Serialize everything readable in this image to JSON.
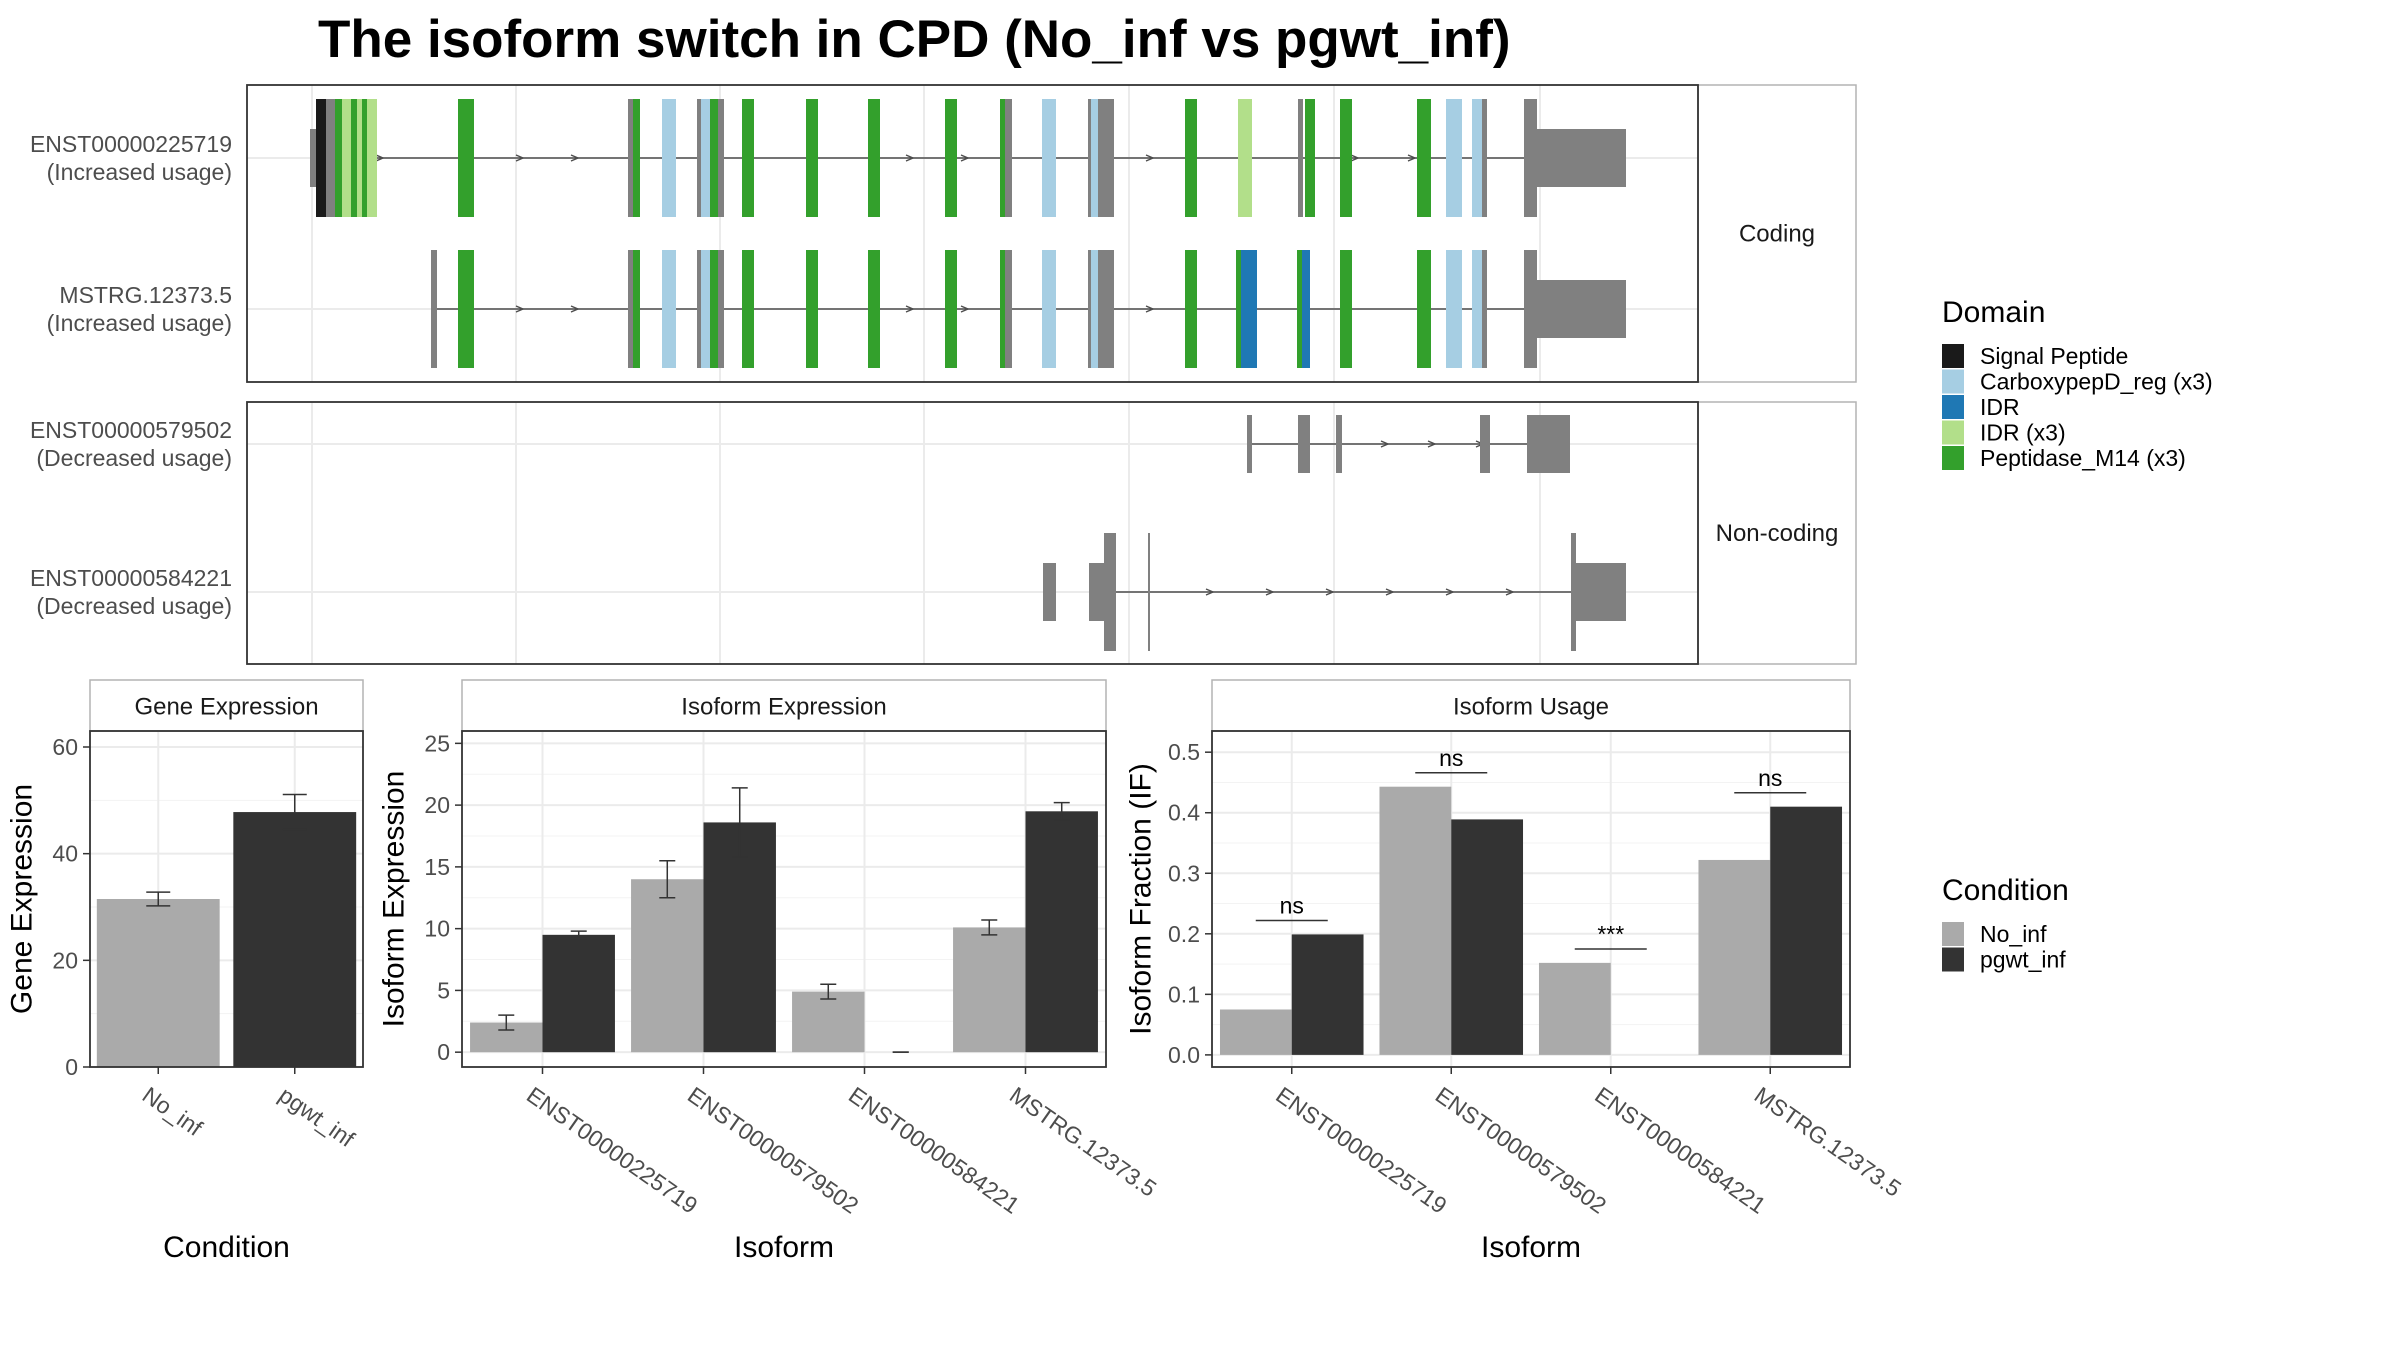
{
  "title": "The isoform switch in CPD (No_inf vs pgwt_inf)",
  "colors": {
    "no_inf": "#aaaaaa",
    "pgwt_inf": "#333333",
    "exon": "#808080",
    "Signal Peptide": "#1a1a1a",
    "CarboxypepD_reg (x3)": "#a6cee3",
    "IDR": "#1f78b4",
    "IDR (x3)": "#b2df8a",
    "Peptidase_M14 (x3)": "#33a02c"
  },
  "structure": {
    "facets": [
      "Coding",
      "Non-coding"
    ],
    "transcripts": [
      {
        "id": "ENST00000225719",
        "usage": "(Increased usage)",
        "facet": "Coding"
      },
      {
        "id": "MSTRG.12373.5",
        "usage": "(Increased usage)",
        "facet": "Coding"
      },
      {
        "id": "ENST00000579502",
        "usage": "(Decreased usage)",
        "facet": "Non-coding"
      },
      {
        "id": "ENST00000584221",
        "usage": "(Decreased usage)",
        "facet": "Non-coding"
      }
    ]
  },
  "legend_domain": {
    "title": "Domain",
    "items": [
      "Signal Peptide",
      "CarboxypepD_reg (x3)",
      "IDR",
      "IDR (x3)",
      "Peptidase_M14 (x3)"
    ]
  },
  "legend_condition": {
    "title": "Condition",
    "items": [
      "No_inf",
      "pgwt_inf"
    ]
  },
  "chart_data": [
    {
      "type": "bar",
      "title": "Gene Expression",
      "xlabel": "Condition",
      "ylabel": "Gene Expression",
      "categories": [
        "No_inf",
        "pgwt_inf"
      ],
      "values": [
        31.5,
        47.8
      ],
      "errors": [
        1.3,
        3.3
      ],
      "ylim": [
        0,
        63
      ],
      "yticks": [
        0,
        20,
        40,
        60
      ]
    },
    {
      "type": "bar",
      "title": "Isoform Expression",
      "xlabel": "Isoform",
      "ylabel": "Isoform Expression",
      "categories": [
        "ENST00000225719",
        "ENST00000579502",
        "ENST00000584221",
        "MSTRG.12373.5"
      ],
      "series": [
        {
          "name": "No_inf",
          "values": [
            2.4,
            14.0,
            4.9,
            10.1
          ],
          "errors": [
            0.6,
            1.5,
            0.6,
            0.6
          ]
        },
        {
          "name": "pgwt_inf",
          "values": [
            9.5,
            18.6,
            0.0,
            19.5
          ],
          "errors": [
            0.3,
            2.8,
            0.0,
            0.7
          ]
        }
      ],
      "ylim": [
        -1.2,
        26
      ],
      "yticks": [
        0,
        5,
        10,
        15,
        20,
        25
      ]
    },
    {
      "type": "bar",
      "title": "Isoform Usage",
      "xlabel": "Isoform",
      "ylabel": "Isoform Fraction (IF)",
      "categories": [
        "ENST00000225719",
        "ENST00000579502",
        "ENST00000584221",
        "MSTRG.12373.5"
      ],
      "series": [
        {
          "name": "No_inf",
          "values": [
            0.075,
            0.443,
            0.152,
            0.322
          ]
        },
        {
          "name": "pgwt_inf",
          "values": [
            0.199,
            0.389,
            0.0,
            0.41
          ]
        }
      ],
      "significance": [
        "ns",
        "ns",
        "***",
        "ns"
      ],
      "sig_y": [
        0.222,
        0.466,
        0.175,
        0.433
      ],
      "ylim": [
        -0.02,
        0.535
      ],
      "yticks": [
        0.0,
        0.1,
        0.2,
        0.3,
        0.4,
        0.5
      ]
    }
  ]
}
